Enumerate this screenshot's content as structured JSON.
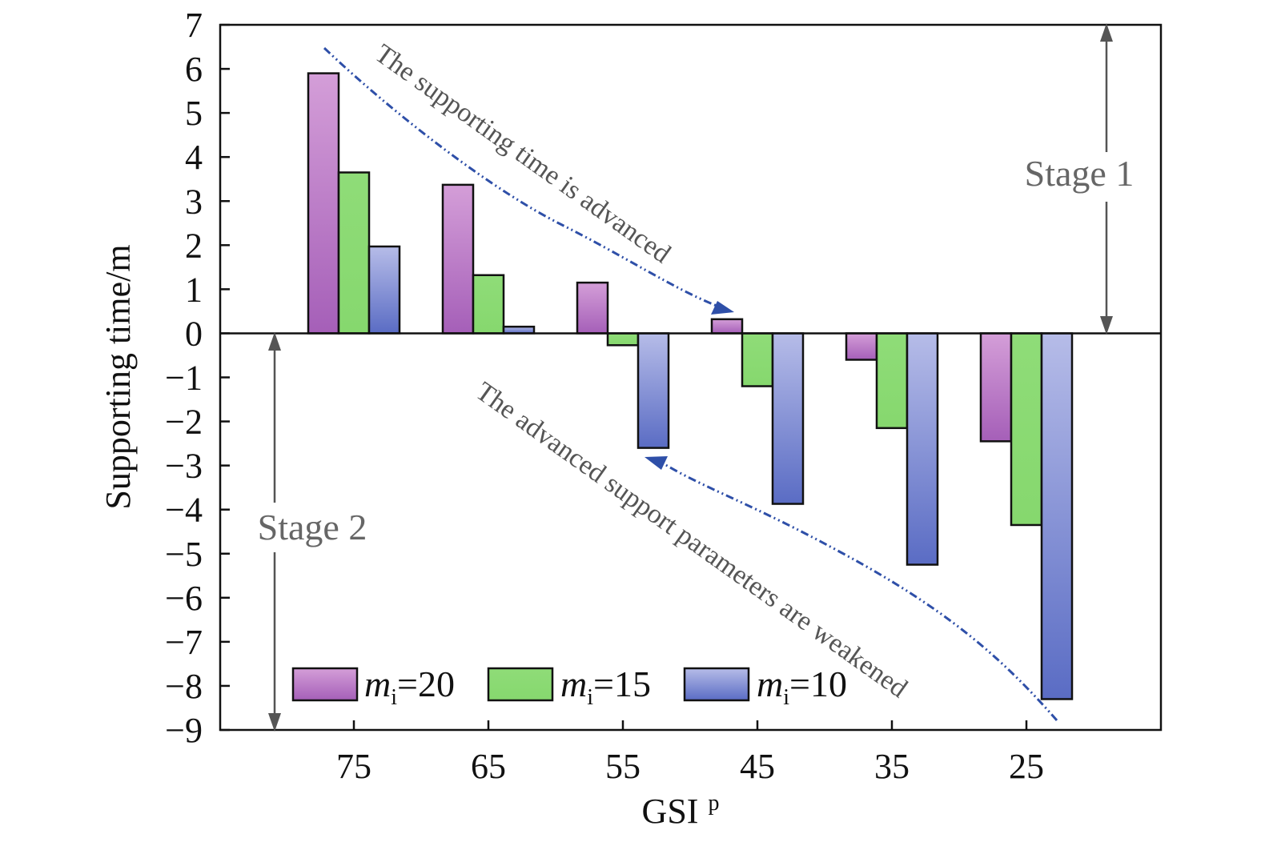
{
  "chart_data": {
    "type": "bar",
    "categories": [
      "75",
      "65",
      "55",
      "45",
      "35",
      "25"
    ],
    "series": [
      {
        "name": "=20",
        "sub": "i",
        "prefix": "m",
        "values": [
          5.9,
          3.37,
          1.15,
          0.32,
          -0.6,
          -2.45
        ],
        "color_top": "#d49ed8",
        "color_bottom": "#a55fb8"
      },
      {
        "name": "=15",
        "sub": "i",
        "prefix": "m",
        "values": [
          3.65,
          1.32,
          -0.27,
          -1.2,
          -2.15,
          -4.35
        ],
        "color_top": "#8fdc78",
        "color_bottom": "#86d86e"
      },
      {
        "name": "=10",
        "sub": "i",
        "prefix": "m",
        "values": [
          1.97,
          0.15,
          -2.6,
          -3.87,
          -5.25,
          -8.3
        ],
        "color_top": "#b6bce8",
        "color_bottom": "#5a6cc4"
      }
    ],
    "xlabel": "GSI",
    "xlabel_sup": "p",
    "ylabel": "Supporting time/m",
    "ylim": [
      -9,
      7
    ],
    "yticks": [
      7,
      6,
      5,
      4,
      3,
      2,
      1,
      0,
      -1,
      -2,
      -3,
      -4,
      -5,
      -6,
      -7,
      -8,
      -9
    ],
    "ytick_labels": [
      "7",
      "6",
      "5",
      "4",
      "3",
      "2",
      "1",
      "0",
      "−1",
      "−2",
      "−3",
      "−4",
      "−5",
      "−6",
      "−7",
      "−8",
      "−9"
    ],
    "grid": false,
    "legend_position": "bottom-left",
    "annotations": {
      "top_arrow_text": "The supporting time is advanced",
      "bottom_arrow_text": "The advanced support parameters are weakened",
      "stage1": "Stage 1",
      "stage2": "Stage 2"
    },
    "arrow_color": "#2e4fa8"
  }
}
